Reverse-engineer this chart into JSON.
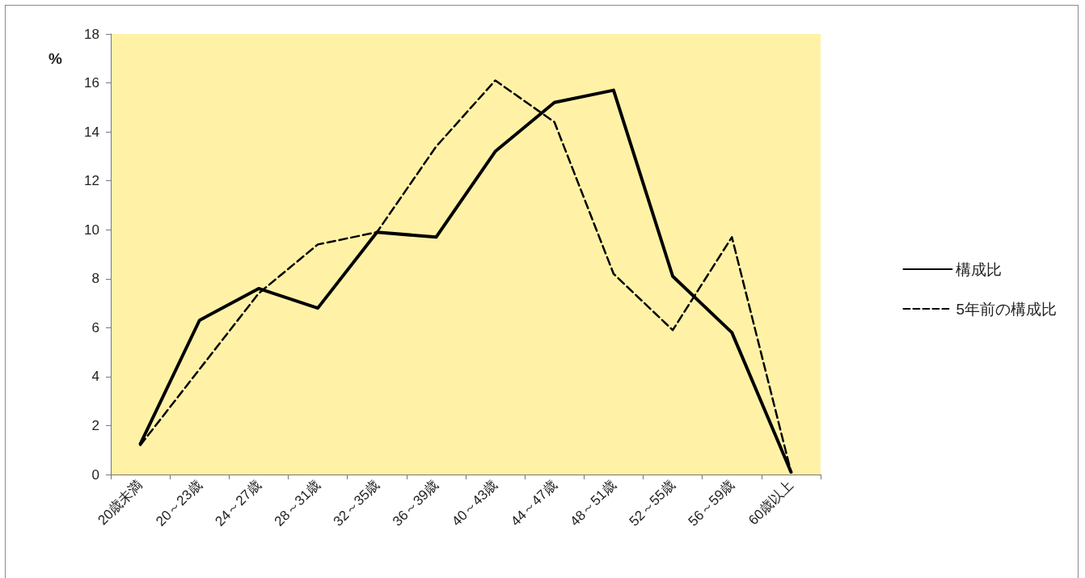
{
  "chart_data": {
    "type": "line",
    "ylabel": "%",
    "categories": [
      "20歳未満",
      "20～23歳",
      "24～27歳",
      "28～31歳",
      "32～35歳",
      "36～39歳",
      "40～43歳",
      "44～47歳",
      "48～51歳",
      "52～55歳",
      "56～59歳",
      "60歳以上"
    ],
    "series": [
      {
        "name": "構成比",
        "color": "#000000",
        "line_style": "solid",
        "values": [
          1.25,
          6.3,
          7.6,
          6.8,
          9.9,
          9.7,
          13.2,
          15.2,
          15.7,
          8.1,
          5.8,
          0.1
        ]
      },
      {
        "name": "5年前の構成比",
        "color": "#000000",
        "line_style": "dashed",
        "values": [
          1.2,
          4.3,
          7.4,
          9.4,
          9.9,
          13.4,
          16.1,
          14.4,
          8.2,
          5.9,
          9.7,
          0.1
        ]
      }
    ],
    "ylim": [
      0,
      18
    ],
    "yticks": [
      0,
      2,
      4,
      6,
      8,
      10,
      12,
      14,
      16,
      18
    ],
    "grid": false,
    "legend": "right",
    "marker": "none"
  }
}
